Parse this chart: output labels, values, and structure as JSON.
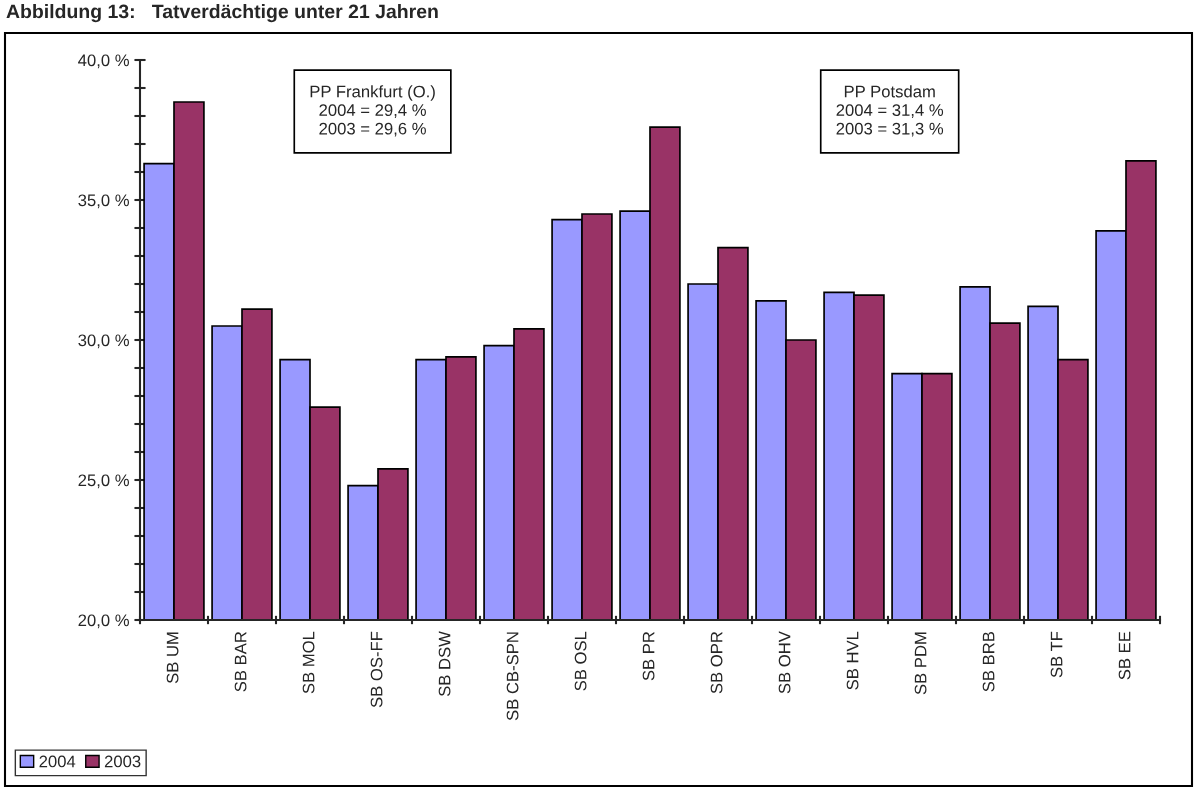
{
  "chart_data": {
    "type": "bar",
    "title": "Abbildung 13:   Tatverdächtige unter 21 Jahren",
    "categories": [
      "SB UM",
      "SB BAR",
      "SB MOL",
      "SB OS-FF",
      "SB DSW",
      "SB CB-SPN",
      "SB OSL",
      "SB PR",
      "SB OPR",
      "SB OHV",
      "SB HVL",
      "SB PDM",
      "SB BRB",
      "SB TF",
      "SB EE"
    ],
    "series": [
      {
        "name": "2004",
        "color": "#9999ff",
        "values": [
          36.3,
          30.5,
          29.3,
          24.8,
          29.3,
          29.8,
          34.3,
          34.6,
          32.0,
          31.4,
          31.7,
          28.8,
          31.9,
          31.2,
          33.9
        ]
      },
      {
        "name": "2003",
        "color": "#993366",
        "values": [
          38.5,
          31.1,
          27.6,
          25.4,
          29.4,
          30.4,
          34.5,
          37.6,
          33.3,
          30.0,
          31.6,
          28.8,
          30.6,
          29.3,
          36.4
        ]
      }
    ],
    "ylim": [
      20,
      40
    ],
    "yticks": [
      {
        "value": 20,
        "label": "20,0 %"
      },
      {
        "value": 21,
        "label": null
      },
      {
        "value": 22,
        "label": null
      },
      {
        "value": 23,
        "label": null
      },
      {
        "value": 24,
        "label": null
      },
      {
        "value": 25,
        "label": "25,0 %"
      },
      {
        "value": 26,
        "label": null
      },
      {
        "value": 27,
        "label": null
      },
      {
        "value": 28,
        "label": null
      },
      {
        "value": 29,
        "label": null
      },
      {
        "value": 30,
        "label": "30,0 %"
      },
      {
        "value": 31,
        "label": null
      },
      {
        "value": 32,
        "label": null
      },
      {
        "value": 33,
        "label": null
      },
      {
        "value": 34,
        "label": null
      },
      {
        "value": 35,
        "label": "35,0 %"
      },
      {
        "value": 36,
        "label": null
      },
      {
        "value": 37,
        "label": null
      },
      {
        "value": 38,
        "label": null
      },
      {
        "value": 39,
        "label": null
      },
      {
        "value": 40,
        "label": "40,0 %"
      }
    ],
    "annotations": [
      "PP Frankfurt (O.)\n2004 = 29,4 %\n2003 = 29,6 %",
      "PP Potsdam\n2004 = 31,4 %\n2003 = 31,3 %"
    ],
    "grid": false,
    "legend": "bottom left"
  }
}
